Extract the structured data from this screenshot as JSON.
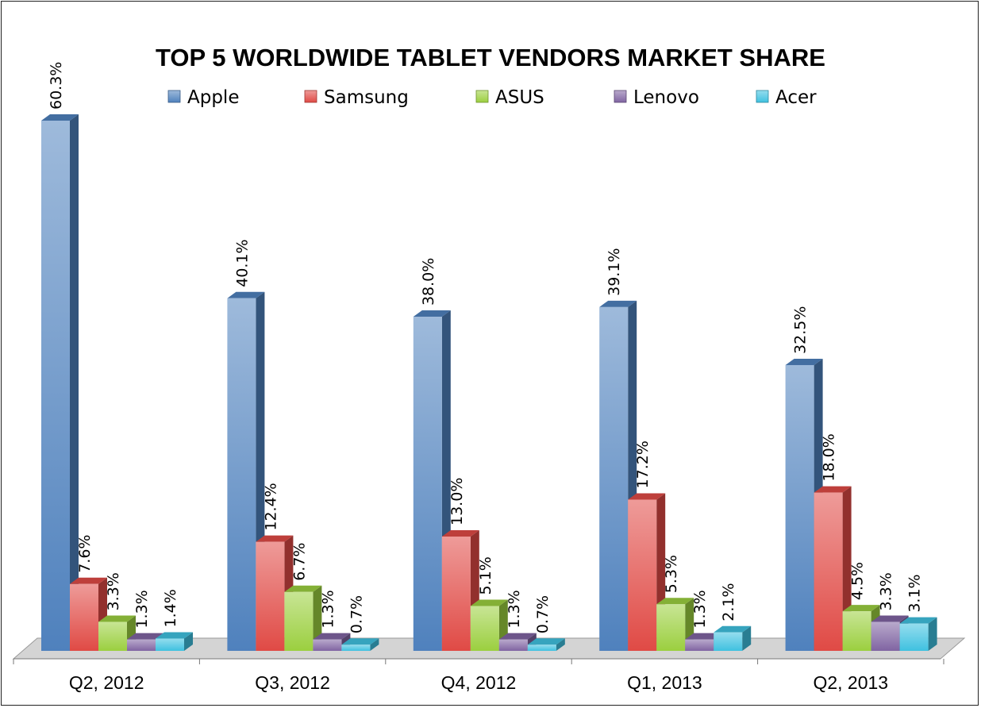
{
  "chart_data": {
    "type": "bar",
    "title": "TOP 5 WORLDWIDE TABLET VENDORS MARKET SHARE",
    "categories": [
      "Q2, 2012",
      "Q3, 2012",
      "Q4, 2012",
      "Q1, 2013",
      "Q2, 2013"
    ],
    "series": [
      {
        "name": "Apple",
        "values": [
          60.3,
          40.1,
          38.0,
          39.1,
          32.5
        ],
        "labels": [
          "60.3%",
          "40.1%",
          "38.0%",
          "39.1%",
          "32.5%"
        ],
        "color": "#4f81bd"
      },
      {
        "name": "Samsung",
        "values": [
          7.6,
          12.4,
          13.0,
          17.2,
          18.0
        ],
        "labels": [
          "7.6%",
          "12.4%",
          "13.0%",
          "17.2%",
          "18.0%"
        ],
        "color": "#e04a45"
      },
      {
        "name": "ASUS",
        "values": [
          3.3,
          6.7,
          5.1,
          5.3,
          4.5
        ],
        "labels": [
          "3.3%",
          "6.7%",
          "5.1%",
          "5.3%",
          "4.5%"
        ],
        "color": "#9bcf3f"
      },
      {
        "name": "Lenovo",
        "values": [
          1.3,
          1.3,
          1.3,
          1.3,
          3.3
        ],
        "labels": [
          "1.3%",
          "1.3%",
          "1.3%",
          "1.3%",
          "3.3%"
        ],
        "color": "#8064a2"
      },
      {
        "name": "Acer",
        "values": [
          1.4,
          0.7,
          0.7,
          2.1,
          3.1
        ],
        "labels": [
          "1.4%",
          "0.7%",
          "0.7%",
          "2.1%",
          "3.1%"
        ],
        "color": "#3fc1e0"
      }
    ],
    "xlabel": "",
    "ylabel": "",
    "ylim": [
      0,
      60.3
    ],
    "grid": false,
    "legend": "top",
    "style": "3d-column"
  }
}
